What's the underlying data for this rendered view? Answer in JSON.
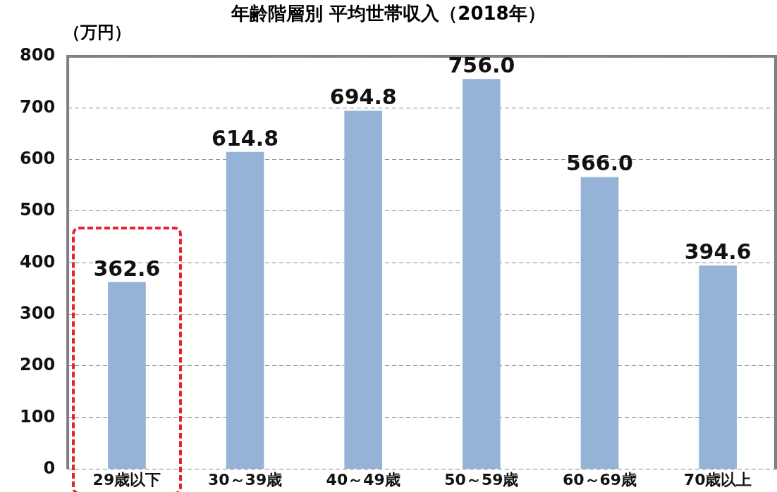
{
  "chart_data": {
    "type": "bar",
    "title": "年齢階層別 平均世帯収入（2018年）",
    "ylabel": "（万円）",
    "categories": [
      "29歳以下",
      "30～39歳",
      "40～49歳",
      "50～59歳",
      "60～69歳",
      "70歳以上"
    ],
    "values": [
      362.6,
      614.8,
      694.8,
      756.0,
      566.0,
      394.6
    ],
    "color": "#95b3d7",
    "ylim": [
      0,
      800
    ],
    "yticks": [
      0,
      100,
      200,
      300,
      400,
      500,
      600,
      700,
      800
    ],
    "grid": "y",
    "line_style": "dashed",
    "data_labels": true,
    "value_labels": [
      "362.6",
      "614.8",
      "694.8",
      "756.0",
      "566.0",
      "394.6"
    ],
    "legend": false
  }
}
